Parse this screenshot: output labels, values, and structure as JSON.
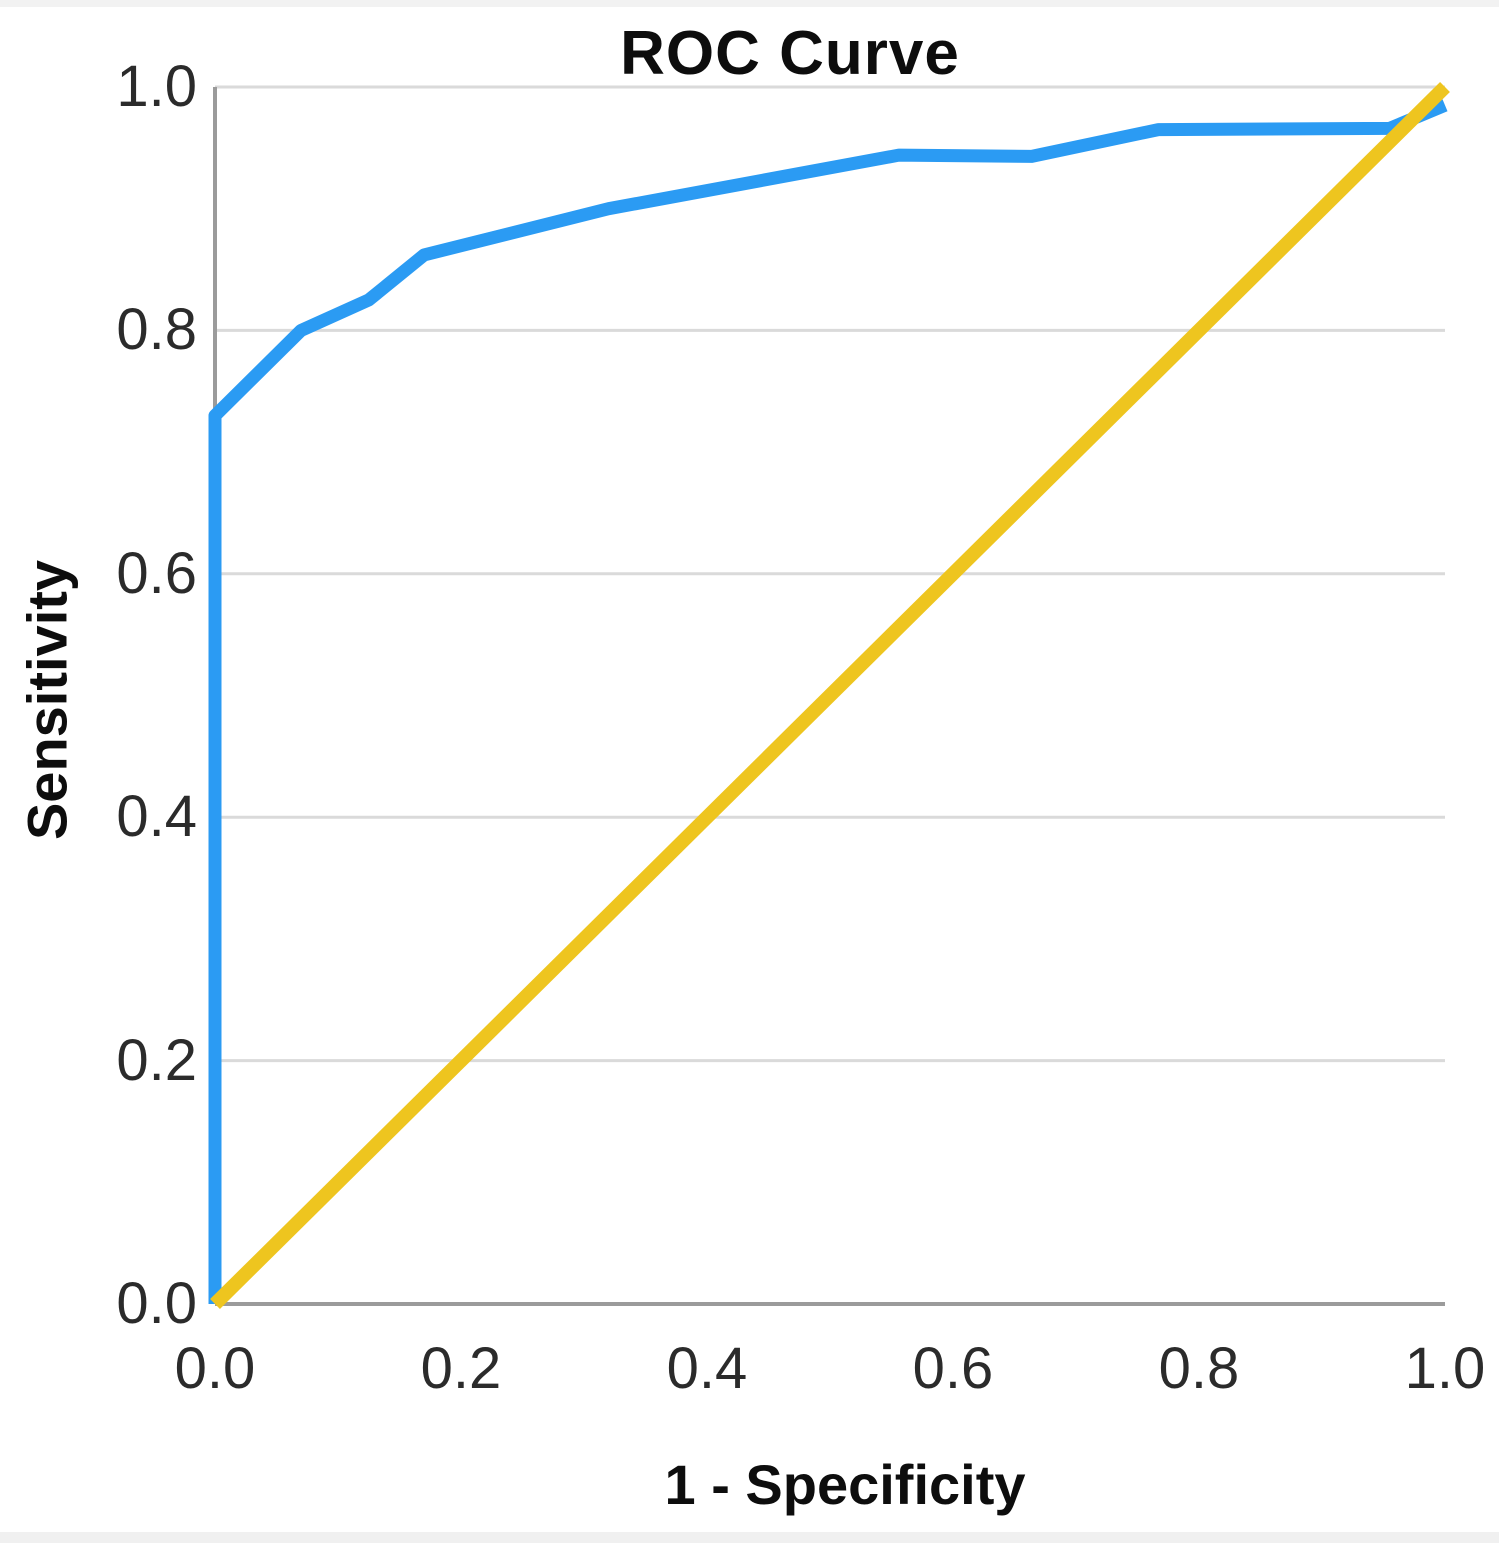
{
  "chart_data": {
    "type": "line",
    "title": "ROC Curve",
    "xlabel": "1 - Specificity",
    "ylabel": "Sensitivity",
    "xlim": [
      0,
      1
    ],
    "ylim": [
      0,
      1
    ],
    "x_ticks": [
      "0.0",
      "0.2",
      "0.4",
      "0.6",
      "0.8",
      "1.0"
    ],
    "y_ticks": [
      "0.0",
      "0.2",
      "0.4",
      "0.6",
      "0.8",
      "1.0"
    ],
    "grid": "horizontal",
    "legend": "none",
    "series": [
      {
        "name": "ROC curve",
        "color": "#2B9BF3",
        "width": 13,
        "points": [
          [
            0.0,
            0.0
          ],
          [
            0.0,
            0.73
          ],
          [
            0.07,
            0.8
          ],
          [
            0.125,
            0.825
          ],
          [
            0.17,
            0.862
          ],
          [
            0.32,
            0.9
          ],
          [
            0.556,
            0.944
          ],
          [
            0.664,
            0.943
          ],
          [
            0.767,
            0.965
          ],
          [
            0.955,
            0.966
          ],
          [
            1.0,
            0.985
          ]
        ]
      },
      {
        "name": "Reference diagonal",
        "color": "#EEC51F",
        "width": 14,
        "points": [
          [
            0.0,
            0.0
          ],
          [
            1.0,
            1.0
          ]
        ]
      }
    ],
    "colors": {
      "gridline": "#DADADA",
      "axis": "#9B9B9B",
      "tick_text": "#2B2B2B",
      "title_text": "#0D0D0D"
    }
  }
}
